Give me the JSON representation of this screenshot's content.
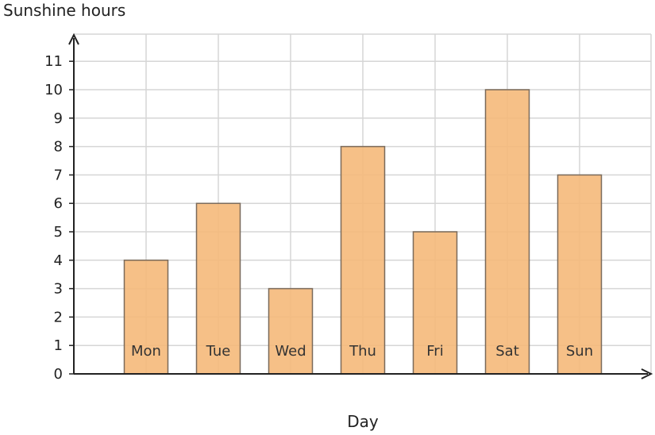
{
  "chart_data": {
    "type": "bar",
    "title": "",
    "xlabel": "Day",
    "ylabel": "Sunshine hours",
    "categories": [
      "Mon",
      "Tue",
      "Wed",
      "Thu",
      "Fri",
      "Sat",
      "Sun"
    ],
    "values": [
      4,
      6,
      3,
      8,
      5,
      10,
      7
    ],
    "ylim": [
      0,
      11
    ],
    "yticks": [
      "0",
      "1",
      "2",
      "3",
      "4",
      "5",
      "6",
      "7",
      "8",
      "9",
      "10",
      "11"
    ],
    "grid": true,
    "bar_color": "#f5b97a",
    "bar_stroke": "#7a6a5a",
    "legend": "none"
  }
}
